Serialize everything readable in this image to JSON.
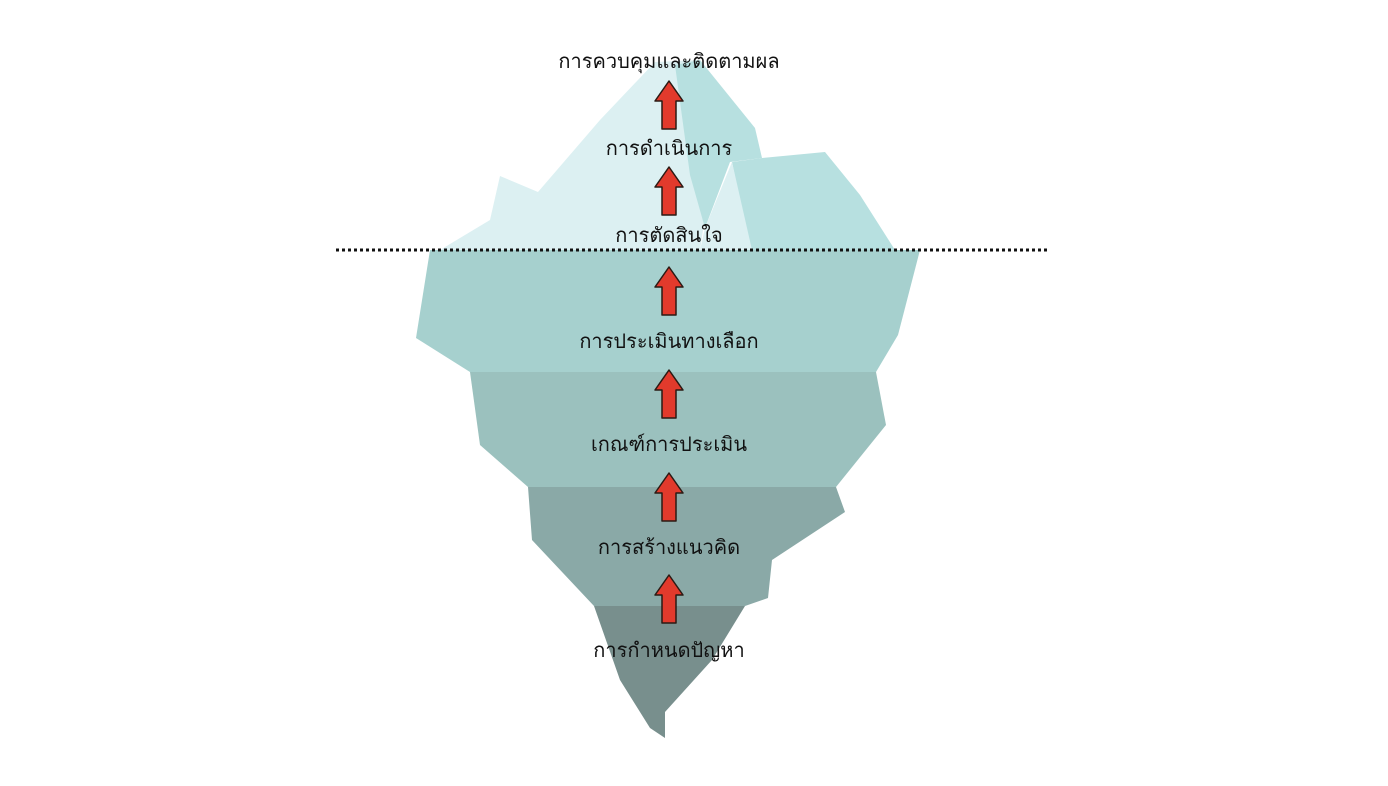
{
  "colors": {
    "tip_light": "#dcf0f2",
    "tip_mid": "#b7e0e0",
    "layer_1": "#a6d0ce",
    "layer_2": "#9bc1be",
    "layer_3": "#8aa9a7",
    "layer_4": "#788f8d",
    "arrow_fill": "#e23a2c",
    "arrow_stroke": "#2b1a14",
    "waterline": "#111111"
  },
  "steps": [
    "การควบคุมและติดตามผล",
    "การดำเนินการ",
    "การตัดสินใจ",
    "การประเมินทางเลือก",
    "เกณฑ์การประเมิน",
    "การสร้างแนวคิด",
    "การกำหนดปัญหา"
  ]
}
